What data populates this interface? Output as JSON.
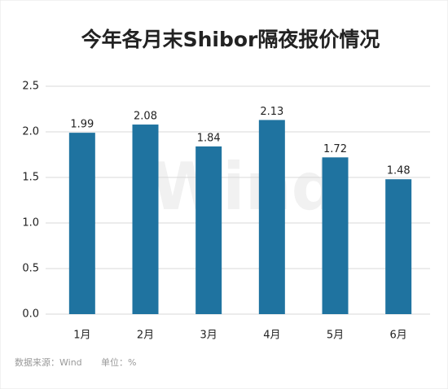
{
  "chart_data": {
    "type": "bar",
    "title": "今年各月末Shibor隔夜报价情况",
    "categories": [
      "1月",
      "2月",
      "3月",
      "4月",
      "5月",
      "6月"
    ],
    "values": [
      1.99,
      2.08,
      1.84,
      2.13,
      1.72,
      1.48
    ],
    "color": "#1f73a0",
    "ylim": [
      0,
      2.5
    ],
    "yticks": [
      {
        "value": 0,
        "label": "0.0"
      },
      0.5,
      {
        "value": 1,
        "label": "1.0"
      },
      1.5,
      {
        "value": 2,
        "label": "2.0"
      },
      2.5
    ],
    "grid": true,
    "watermark": "Wind",
    "source": "数据来源：Wind",
    "unit": "单位：%"
  }
}
